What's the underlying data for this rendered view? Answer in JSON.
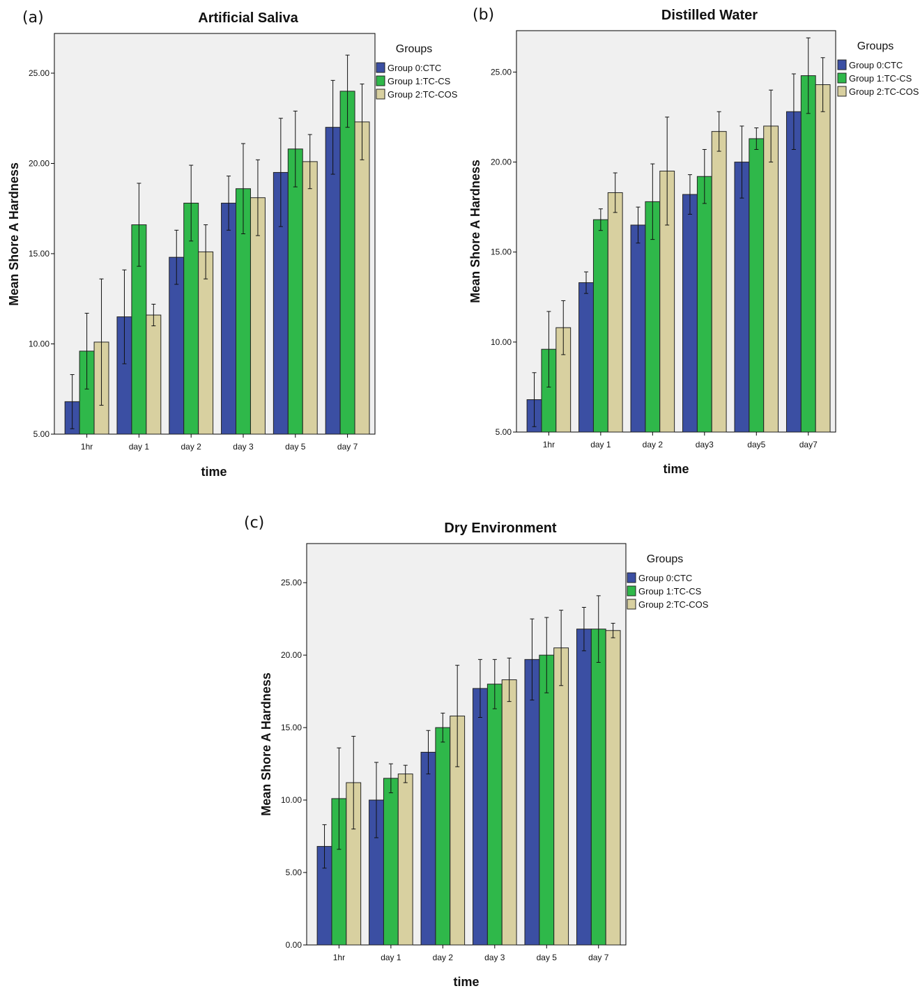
{
  "figure": {
    "legend_title": "Groups",
    "legend_entries": [
      "Group 0:CTC",
      "Group 1:TC-CS",
      "Group 2:TC-COS"
    ],
    "colors": {
      "group0": "#3b4fa3",
      "group1": "#2fb84a",
      "group2": "#d8d0a0"
    }
  },
  "chart_data": [
    {
      "type": "bar",
      "panel": "(a)",
      "title": "Artificial Saliva",
      "xlabel": "time",
      "ylabel": "Mean Shore A Hardness",
      "ylim": [
        5,
        27.2
      ],
      "yticks": [
        5,
        10,
        15,
        20,
        25
      ],
      "ytick_labels": [
        "5.00",
        "10.00",
        "15.00",
        "20.00",
        "25.00"
      ],
      "categories": [
        "1hr",
        "day 1",
        "day 2",
        "day 3",
        "day 5",
        "day 7"
      ],
      "series": [
        {
          "name": "Group 0:CTC",
          "values": [
            6.8,
            11.5,
            14.8,
            17.8,
            19.5,
            22.0
          ],
          "errors": [
            1.5,
            2.6,
            1.5,
            1.5,
            3.0,
            2.6
          ]
        },
        {
          "name": "Group 1:TC-CS",
          "values": [
            9.6,
            16.6,
            17.8,
            18.6,
            20.8,
            24.0
          ],
          "errors": [
            2.1,
            2.3,
            2.1,
            2.5,
            2.1,
            2.0
          ]
        },
        {
          "name": "Group 2:TC-COS",
          "values": [
            10.1,
            11.6,
            15.1,
            18.1,
            20.1,
            22.3
          ],
          "errors": [
            3.5,
            0.6,
            1.5,
            2.1,
            1.5,
            2.1
          ]
        }
      ]
    },
    {
      "type": "bar",
      "panel": "(b)",
      "title": "Distilled Water",
      "xlabel": "time",
      "ylabel": "Mean Shore A Hardness",
      "ylim": [
        5,
        27.3
      ],
      "yticks": [
        5,
        10,
        15,
        20,
        25
      ],
      "ytick_labels": [
        "5.00",
        "10.00",
        "15.00",
        "20.00",
        "25.00"
      ],
      "categories": [
        "1hr",
        "day 1",
        "day 2",
        "day3",
        "day5",
        "day7"
      ],
      "series": [
        {
          "name": "Group 0:CTC",
          "values": [
            6.8,
            13.3,
            16.5,
            18.2,
            20.0,
            22.8
          ],
          "errors": [
            1.5,
            0.6,
            1.0,
            1.1,
            2.0,
            2.1
          ]
        },
        {
          "name": "Group 1:TC-CS",
          "values": [
            9.6,
            16.8,
            17.8,
            19.2,
            21.3,
            24.8
          ],
          "errors": [
            2.1,
            0.6,
            2.1,
            1.5,
            0.6,
            2.1
          ]
        },
        {
          "name": "Group 2:TC-COS",
          "values": [
            10.8,
            18.3,
            19.5,
            21.7,
            22.0,
            24.3
          ],
          "errors": [
            1.5,
            1.1,
            3.0,
            1.1,
            2.0,
            1.5
          ]
        }
      ]
    },
    {
      "type": "bar",
      "panel": "(c)",
      "title": "Dry Environment",
      "xlabel": "time",
      "ylabel": "Mean Shore A Hardness",
      "ylim": [
        0,
        27.7
      ],
      "yticks": [
        0,
        5,
        10,
        15,
        20,
        25
      ],
      "ytick_labels": [
        "0.00",
        "5.00",
        "10.00",
        "15.00",
        "20.00",
        "25.00"
      ],
      "categories": [
        "1hr",
        "day 1",
        "day 2",
        "day 3",
        "day 5",
        "day 7"
      ],
      "series": [
        {
          "name": "Group 0:CTC",
          "values": [
            6.8,
            10.0,
            13.3,
            17.7,
            19.7,
            21.8
          ],
          "errors": [
            1.5,
            2.6,
            1.5,
            2.0,
            2.8,
            1.5
          ]
        },
        {
          "name": "Group 1:TC-CS",
          "values": [
            10.1,
            11.5,
            15.0,
            18.0,
            20.0,
            21.8
          ],
          "errors": [
            3.5,
            1.0,
            1.0,
            1.7,
            2.6,
            2.3
          ]
        },
        {
          "name": "Group 2:TC-COS",
          "values": [
            11.2,
            11.8,
            15.8,
            18.3,
            20.5,
            21.7
          ],
          "errors": [
            3.2,
            0.6,
            3.5,
            1.5,
            2.6,
            0.5
          ]
        }
      ]
    }
  ]
}
